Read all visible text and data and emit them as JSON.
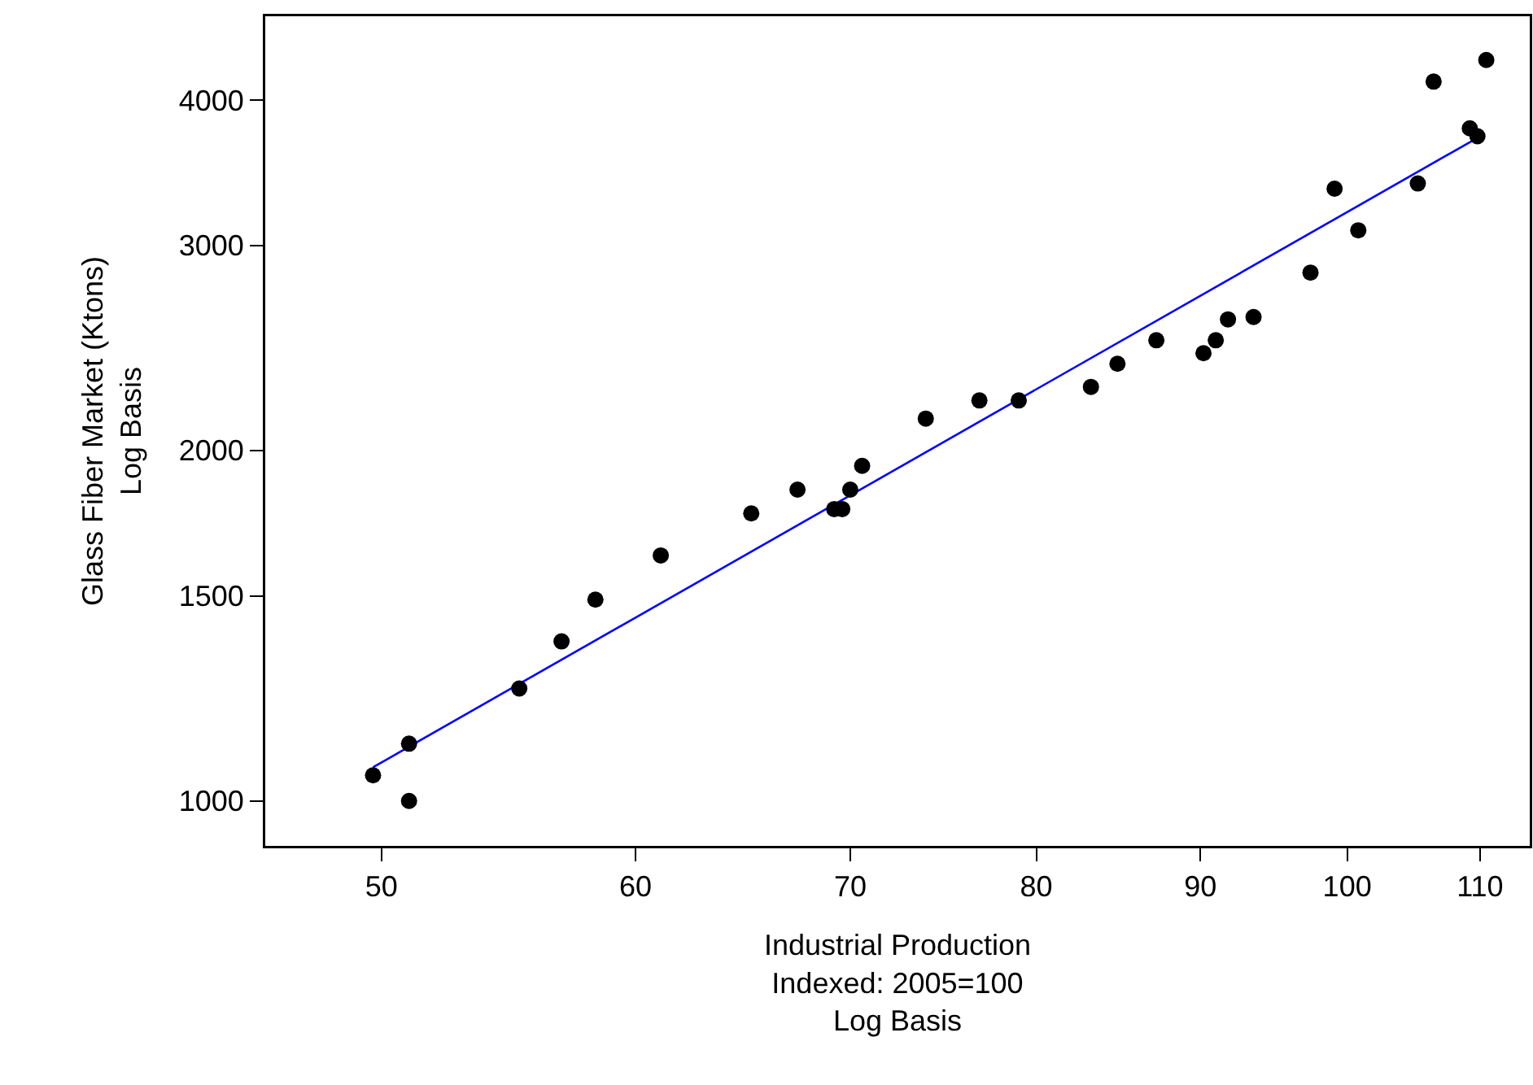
{
  "chart_data": {
    "type": "scatter",
    "xlabel": "Industrial Production\nIndexed: 2005=100\nLog Basis",
    "ylabel": "Glass Fiber Market (Ktons)\nLog Basis",
    "log": "xy",
    "grid": false,
    "marker": "circle",
    "xlim": [
      46,
      114
    ],
    "xticks": [
      50,
      60,
      70,
      80,
      90,
      100,
      110
    ],
    "ylim": [
      915,
      4720
    ],
    "yticks": [
      1000,
      1500,
      2000,
      3000,
      4000
    ],
    "series": [
      {
        "color": "#000000",
        "x": [
          49.7,
          51.0,
          51.0,
          55.2,
          56.9,
          58.3,
          61.1,
          65.2,
          67.4,
          69.2,
          69.6,
          70.0,
          70.6,
          73.9,
          76.8,
          79.0,
          83.2,
          84.8,
          87.2,
          90.2,
          91.0,
          91.8,
          93.5,
          97.4,
          99.1,
          100.8,
          105.2,
          106.4,
          109.2,
          109.8,
          110.5
        ],
        "values": [
          1052,
          1120,
          1000,
          1249,
          1371,
          1489,
          1625,
          1766,
          1851,
          1781,
          1781,
          1851,
          1940,
          2130,
          2208,
          2208,
          2268,
          2374,
          2487,
          2424,
          2487,
          2592,
          2604,
          2843,
          3356,
          3091,
          3391,
          4148,
          3782,
          3723,
          4329
        ]
      },
      {
        "type": "line",
        "color": "#0000ff",
        "marker": "none",
        "line_style": "solid",
        "x": [
          49.7,
          109.4
        ],
        "values": [
          1069,
          3690
        ]
      }
    ]
  }
}
